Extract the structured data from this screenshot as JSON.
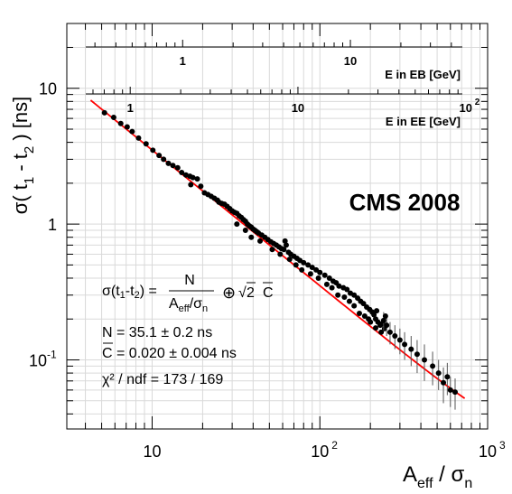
{
  "chart_data": {
    "type": "scatter",
    "title": "",
    "xlabel": {
      "main": "A",
      "sub1": "eff",
      "sep": " / σ",
      "sub2": "n"
    },
    "ylabel": {
      "pre": "σ( t",
      "sub1": "1",
      "mid": " - t",
      "sub2": "2",
      "post": " ) [ns]"
    },
    "xscale": "log",
    "yscale": "log",
    "xlim": [
      3.1,
      1000
    ],
    "ylim": [
      0.031,
      30
    ],
    "grid": true,
    "x_ticks": [
      {
        "value": 10,
        "base": "10",
        "exp": ""
      },
      {
        "value": 100,
        "base": "10",
        "exp": "2"
      },
      {
        "value": 1000,
        "base": "10",
        "exp": "3"
      }
    ],
    "y_ticks": [
      {
        "value": 0.1,
        "base": "10",
        "exp": "-1"
      },
      {
        "value": 1,
        "base": "1",
        "exp": ""
      },
      {
        "value": 10,
        "base": "10",
        "exp": ""
      }
    ],
    "secondary_axes": [
      {
        "title": "E in EB [GeV]",
        "ticks": [
          {
            "label": "1",
            "x": 15.2
          },
          {
            "label": "10",
            "x": 152
          }
        ]
      },
      {
        "title": "E in EE [GeV]",
        "ticks": [
          {
            "label": "1",
            "x": 7.4
          },
          {
            "label": "10",
            "x": 74
          },
          {
            "label": "10",
            "exp": "2",
            "x": 740
          }
        ]
      }
    ],
    "experiment_label": "CMS 2008",
    "fit": {
      "formula": {
        "lhs": "σ(t",
        "lsub1": "1",
        "lmid": "-t",
        "lsub2": "2",
        "lpost": ") =",
        "num": "N",
        "den_a": "A",
        "den_sub1": "eff",
        "den_mid": "/σ",
        "den_sub2": "n",
        "op": "⊕",
        "sqrt": "√",
        "two": "2",
        "c": "C"
      },
      "N_label": "N = 35.1 ± 0.2 ns",
      "C_label": "C = 0.020 ± 0.004 ns",
      "chi2_label": "χ² / ndf = 173 / 169",
      "N": 35.1,
      "C": 0.02,
      "line_range": [
        4.3,
        730
      ],
      "color": "#ff0000"
    },
    "series": [
      {
        "name": "data",
        "color": "#000000",
        "points": [
          [
            5.2,
            6.6,
            0.0
          ],
          [
            5.9,
            6.1,
            0.0
          ],
          [
            6.5,
            5.5,
            0.0
          ],
          [
            7.1,
            5.2,
            0.0
          ],
          [
            7.6,
            4.8,
            0.0
          ],
          [
            8.3,
            4.3,
            0.0
          ],
          [
            9.2,
            3.9,
            0.0
          ],
          [
            10.1,
            3.5,
            0.0
          ],
          [
            11.0,
            3.2,
            0.0
          ],
          [
            11.7,
            3.0,
            0.0
          ],
          [
            12.5,
            2.8,
            0.0
          ],
          [
            13.3,
            2.7,
            0.0
          ],
          [
            14.2,
            2.6,
            0.0
          ],
          [
            15.0,
            2.4,
            0.0
          ],
          [
            15.9,
            2.3,
            0.0
          ],
          [
            16.8,
            2.25,
            0.0
          ],
          [
            17.5,
            2.2,
            0.0
          ],
          [
            18.6,
            2.15,
            0.0
          ],
          [
            17.0,
            1.95,
            0.0
          ],
          [
            19.5,
            1.9,
            0.0
          ],
          [
            20.5,
            1.7,
            0.0
          ],
          [
            21.5,
            1.65,
            0.0
          ],
          [
            22.5,
            1.6,
            0.0
          ],
          [
            23.5,
            1.55,
            0.0
          ],
          [
            24.5,
            1.5,
            0.0
          ],
          [
            25.0,
            1.45,
            0.0
          ],
          [
            26.0,
            1.42,
            0.0
          ],
          [
            27.0,
            1.4,
            0.0
          ],
          [
            28.0,
            1.35,
            0.0
          ],
          [
            29.0,
            1.3,
            0.0
          ],
          [
            30.0,
            1.25,
            0.0
          ],
          [
            31.0,
            1.22,
            0.0
          ],
          [
            32.0,
            1.2,
            0.0
          ],
          [
            33.0,
            1.15,
            0.0
          ],
          [
            34.0,
            1.12,
            0.0
          ],
          [
            35.0,
            1.08,
            0.0
          ],
          [
            36.0,
            1.05,
            0.0
          ],
          [
            37.0,
            1.0,
            0.0
          ],
          [
            38.0,
            0.97,
            0.0
          ],
          [
            39.0,
            0.95,
            0.0
          ],
          [
            40.0,
            0.92,
            0.0
          ],
          [
            41.0,
            0.9,
            0.0
          ],
          [
            42.0,
            0.88,
            0.0
          ],
          [
            43.0,
            0.86,
            0.0
          ],
          [
            45.0,
            0.83,
            0.0
          ],
          [
            47.0,
            0.8,
            0.0
          ],
          [
            49.0,
            0.77,
            0.0
          ],
          [
            51.0,
            0.74,
            0.0
          ],
          [
            53.0,
            0.72,
            0.0
          ],
          [
            55.0,
            0.7,
            0.0
          ],
          [
            57.0,
            0.68,
            0.0
          ],
          [
            59.0,
            0.66,
            0.0
          ],
          [
            61.0,
            0.65,
            0.0
          ],
          [
            63.0,
            0.7,
            0.0
          ],
          [
            65.0,
            0.62,
            0.0
          ],
          [
            67.0,
            0.6,
            0.0
          ],
          [
            70.0,
            0.58,
            0.0
          ],
          [
            73.0,
            0.56,
            0.0
          ],
          [
            76.0,
            0.54,
            0.0
          ],
          [
            80.0,
            0.52,
            0.0
          ],
          [
            85.0,
            0.5,
            0.0
          ],
          [
            90.0,
            0.48,
            0.0
          ],
          [
            95.0,
            0.46,
            0.0
          ],
          [
            100.0,
            0.44,
            0.0
          ],
          [
            107.0,
            0.42,
            0.0
          ],
          [
            114.0,
            0.4,
            0.0
          ],
          [
            120.0,
            0.38,
            0.0
          ],
          [
            125.0,
            0.37,
            0.0
          ],
          [
            130.0,
            0.35,
            0.0
          ],
          [
            138.0,
            0.34,
            0.0
          ],
          [
            145.0,
            0.33,
            0.0
          ],
          [
            152.0,
            0.31,
            0.0
          ],
          [
            160.0,
            0.3,
            0.0
          ],
          [
            168.0,
            0.285,
            0.0
          ],
          [
            175.0,
            0.27,
            0.0
          ],
          [
            182.0,
            0.26,
            0.0
          ],
          [
            190.0,
            0.245,
            0.0
          ],
          [
            198.0,
            0.235,
            0.0
          ],
          [
            205.0,
            0.225,
            0.0
          ],
          [
            210.0,
            0.215,
            0.0
          ],
          [
            215.0,
            0.2,
            0.0
          ],
          [
            222.0,
            0.19,
            0.0
          ],
          [
            229.0,
            0.18,
            0.0
          ],
          [
            236.0,
            0.185,
            0.0
          ],
          [
            243.0,
            0.17,
            0.0
          ],
          [
            232.0,
            0.16,
            0.0
          ],
          [
            215.0,
            0.172,
            0.0
          ],
          [
            240.0,
            0.195,
            0.03
          ],
          [
            250.0,
            0.18,
            0.03
          ],
          [
            262.0,
            0.16,
            0.03
          ],
          [
            280.0,
            0.15,
            0.03
          ],
          [
            300.0,
            0.14,
            0.03
          ],
          [
            320.0,
            0.13,
            0.03
          ],
          [
            350.0,
            0.12,
            0.03
          ],
          [
            380.0,
            0.11,
            0.03
          ],
          [
            420.0,
            0.1,
            0.03
          ],
          [
            470.0,
            0.09,
            0.025
          ],
          [
            510.0,
            0.08,
            0.02
          ],
          [
            545.0,
            0.068,
            0.02
          ],
          [
            575.0,
            0.075,
            0.02
          ],
          [
            600.0,
            0.06,
            0.015
          ],
          [
            640.0,
            0.058,
            0.015
          ],
          [
            32.0,
            1.0,
            0.0
          ],
          [
            36.0,
            0.9,
            0.0
          ],
          [
            39.0,
            0.8,
            0.0
          ],
          [
            44.0,
            0.75,
            0.0
          ],
          [
            52.0,
            0.65,
            0.0
          ],
          [
            58.0,
            0.6,
            0.0
          ],
          [
            62.0,
            0.75,
            0.0
          ],
          [
            66.0,
            0.55,
            0.0
          ],
          [
            72.0,
            0.5,
            0.0
          ],
          [
            78.0,
            0.46,
            0.0
          ],
          [
            88.0,
            0.43,
            0.0
          ],
          [
            98.0,
            0.4,
            0.0
          ],
          [
            110.0,
            0.36,
            0.0
          ],
          [
            118.0,
            0.34,
            0.0
          ],
          [
            128.0,
            0.3,
            0.0
          ],
          [
            140.0,
            0.29,
            0.0
          ],
          [
            150.0,
            0.27,
            0.0
          ],
          [
            160.0,
            0.25,
            0.0
          ],
          [
            172.0,
            0.22,
            0.0
          ],
          [
            185.0,
            0.21,
            0.0
          ],
          [
            195.0,
            0.2,
            0.0
          ],
          [
            200.0,
            0.19,
            0.0
          ],
          [
            218.0,
            0.23,
            0.0
          ],
          [
            246.0,
            0.21,
            0.0
          ]
        ]
      }
    ]
  }
}
